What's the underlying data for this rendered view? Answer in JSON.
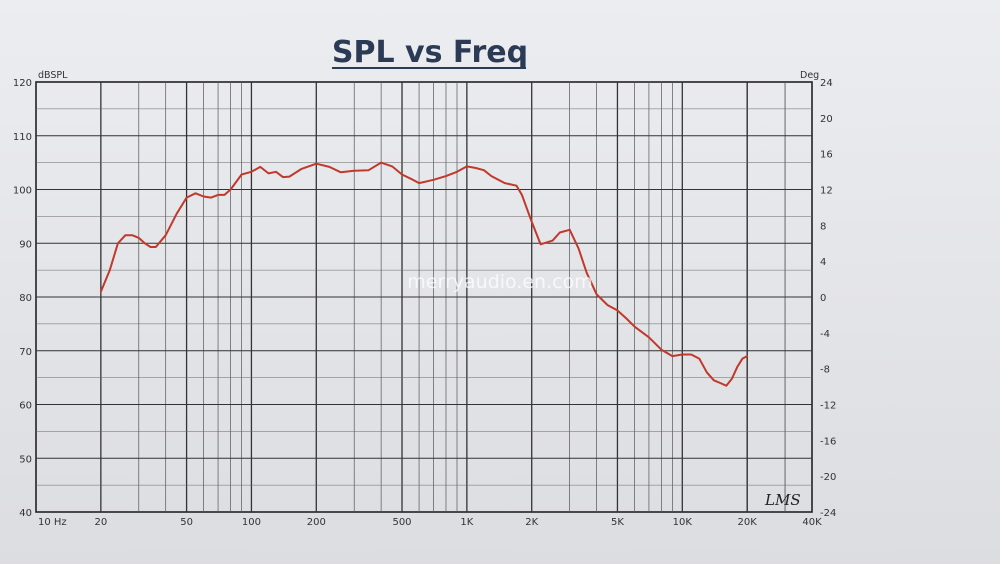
{
  "chart_data": {
    "type": "line",
    "title": "SPL vs Freq",
    "left_unit": "dBSPL",
    "right_unit": "Deg",
    "x_scale": "log",
    "xlim": [
      10,
      40000
    ],
    "ylim": [
      40,
      120
    ],
    "y2lim": [
      -24,
      24
    ],
    "grid": true,
    "x_tick_labels": [
      {
        "value": 10,
        "label": "10 Hz"
      },
      {
        "value": 20,
        "label": "20"
      },
      {
        "value": 50,
        "label": "50"
      },
      {
        "value": 100,
        "label": "100"
      },
      {
        "value": 200,
        "label": "200"
      },
      {
        "value": 500,
        "label": "500"
      },
      {
        "value": 1000,
        "label": "1K"
      },
      {
        "value": 2000,
        "label": "2K"
      },
      {
        "value": 5000,
        "label": "5K"
      },
      {
        "value": 10000,
        "label": "10K"
      },
      {
        "value": 20000,
        "label": "20K"
      },
      {
        "value": 40000,
        "label": "40K"
      }
    ],
    "y_tick_labels": [
      "40",
      "50",
      "60",
      "70",
      "80",
      "90",
      "100",
      "110",
      "120"
    ],
    "y2_tick_labels": [
      "-24",
      "-20",
      "-16",
      "-12",
      "-8",
      "-4",
      "0",
      "4",
      "8",
      "12",
      "16",
      "20",
      "24"
    ],
    "series": [
      {
        "color": "#c0392b",
        "x": [
          20,
          22,
          24,
          26,
          28,
          30,
          32,
          34,
          36,
          40,
          45,
          50,
          55,
          60,
          65,
          70,
          75,
          80,
          90,
          100,
          110,
          120,
          130,
          140,
          150,
          170,
          200,
          230,
          260,
          300,
          350,
          400,
          450,
          500,
          550,
          600,
          700,
          800,
          900,
          1000,
          1100,
          1200,
          1300,
          1500,
          1700,
          1800,
          2000,
          2200,
          2500,
          2700,
          3000,
          3300,
          3600,
          4000,
          4500,
          5000,
          5500,
          6000,
          7000,
          8000,
          9000,
          10000,
          11000,
          12000,
          13000,
          14000,
          15000,
          16000,
          17000,
          18000,
          19000,
          20000
        ],
        "values": [
          81,
          85,
          90,
          91.5,
          91.5,
          91,
          90,
          89.3,
          89.3,
          91.5,
          95.5,
          98.5,
          99.3,
          98.7,
          98.5,
          99,
          99,
          100,
          102.8,
          103.3,
          104.2,
          103,
          103.3,
          102.3,
          102.4,
          103.8,
          104.8,
          104.2,
          103.2,
          103.5,
          103.6,
          105,
          104.3,
          102.8,
          102,
          101.2,
          101.8,
          102.5,
          103.3,
          104.3,
          104,
          103.6,
          102.5,
          101.2,
          100.7,
          99,
          94,
          89.8,
          90.5,
          92,
          92.5,
          89,
          84.5,
          80.5,
          78.5,
          77.5,
          76,
          74.5,
          72.5,
          70.2,
          69,
          69.3,
          69.3,
          68.5,
          66,
          64.5,
          64,
          63.5,
          64.8,
          67,
          68.5,
          69
        ]
      }
    ],
    "annotations": [
      "merryaudio.en.com",
      "LMS"
    ]
  }
}
